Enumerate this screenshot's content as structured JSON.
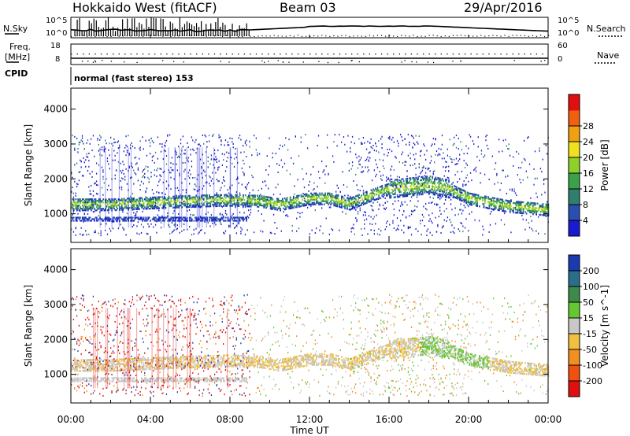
{
  "header": {
    "station": "Hokkaido West (fitACF)",
    "beam": "Beam 03",
    "date": "29/Apr/2016"
  },
  "status_panel": {
    "nsky_label": "N.Sky",
    "nsearch_label": "N.Search",
    "freq_label_line1": "Freq.",
    "freq_label_line2": "[MHz]",
    "nave_label": "Nave",
    "cpid_label": "CPID",
    "noise_tick_top": "10^5",
    "noise_tick_bottom": "10^0",
    "freq_tick_top": "18",
    "freq_tick_bottom": "8",
    "nave_tick_top": "60",
    "nave_tick_bottom": "0",
    "cpid_text": "normal (fast stereo) 153"
  },
  "chart_data": [
    {
      "type": "heatmap",
      "name": "power",
      "xlabel": "Time UT",
      "ylabel": "Slant Range [km]",
      "xlim": [
        0,
        24
      ],
      "ylim": [
        180,
        4600
      ],
      "x_ticks": [
        "00:00",
        "04:00",
        "08:00",
        "12:00",
        "16:00",
        "20:00",
        "00:00"
      ],
      "y_ticks": [
        1000,
        2000,
        3000,
        4000
      ],
      "colorbar": {
        "label": "Power [dB]",
        "ticks": [
          4,
          8,
          12,
          16,
          20,
          24,
          28
        ],
        "colors": [
          "#1a1ad0",
          "#2a4fb0",
          "#2e7f6e",
          "#3aa34a",
          "#8fd02a",
          "#f0e020",
          "#f0a010",
          "#f06010",
          "#e01010"
        ]
      },
      "echo_band_center_km": [
        [
          0,
          1250
        ],
        [
          2,
          1250
        ],
        [
          4,
          1300
        ],
        [
          6,
          1350
        ],
        [
          8,
          1380
        ],
        [
          9.5,
          1350
        ],
        [
          10.5,
          1250
        ],
        [
          12,
          1420
        ],
        [
          13,
          1420
        ],
        [
          14,
          1270
        ],
        [
          15,
          1500
        ],
        [
          16,
          1700
        ],
        [
          18,
          1820
        ],
        [
          19,
          1700
        ],
        [
          20,
          1420
        ],
        [
          22,
          1200
        ],
        [
          24,
          1100
        ]
      ],
      "lower_band_km": [
        [
          0,
          840
        ],
        [
          8.8,
          840
        ]
      ]
    },
    {
      "type": "heatmap",
      "name": "velocity",
      "xlabel": "Time UT",
      "ylabel": "Slant Range [km]",
      "xlim": [
        0,
        24
      ],
      "ylim": [
        180,
        4600
      ],
      "x_ticks": [
        "00:00",
        "04:00",
        "08:00",
        "12:00",
        "16:00",
        "20:00",
        "00:00"
      ],
      "y_ticks": [
        1000,
        2000,
        3000,
        4000
      ],
      "colorbar": {
        "label": "Velocity [m s^-1]",
        "ticks": [
          200,
          100,
          50,
          15,
          -15,
          -50,
          -100,
          -200
        ],
        "colors": [
          "#1a3ab0",
          "#2a6e8a",
          "#3d8a4a",
          "#66c830",
          "#c8c8c8",
          "#f0c040",
          "#f09020",
          "#f05010",
          "#e01010"
        ]
      }
    }
  ]
}
